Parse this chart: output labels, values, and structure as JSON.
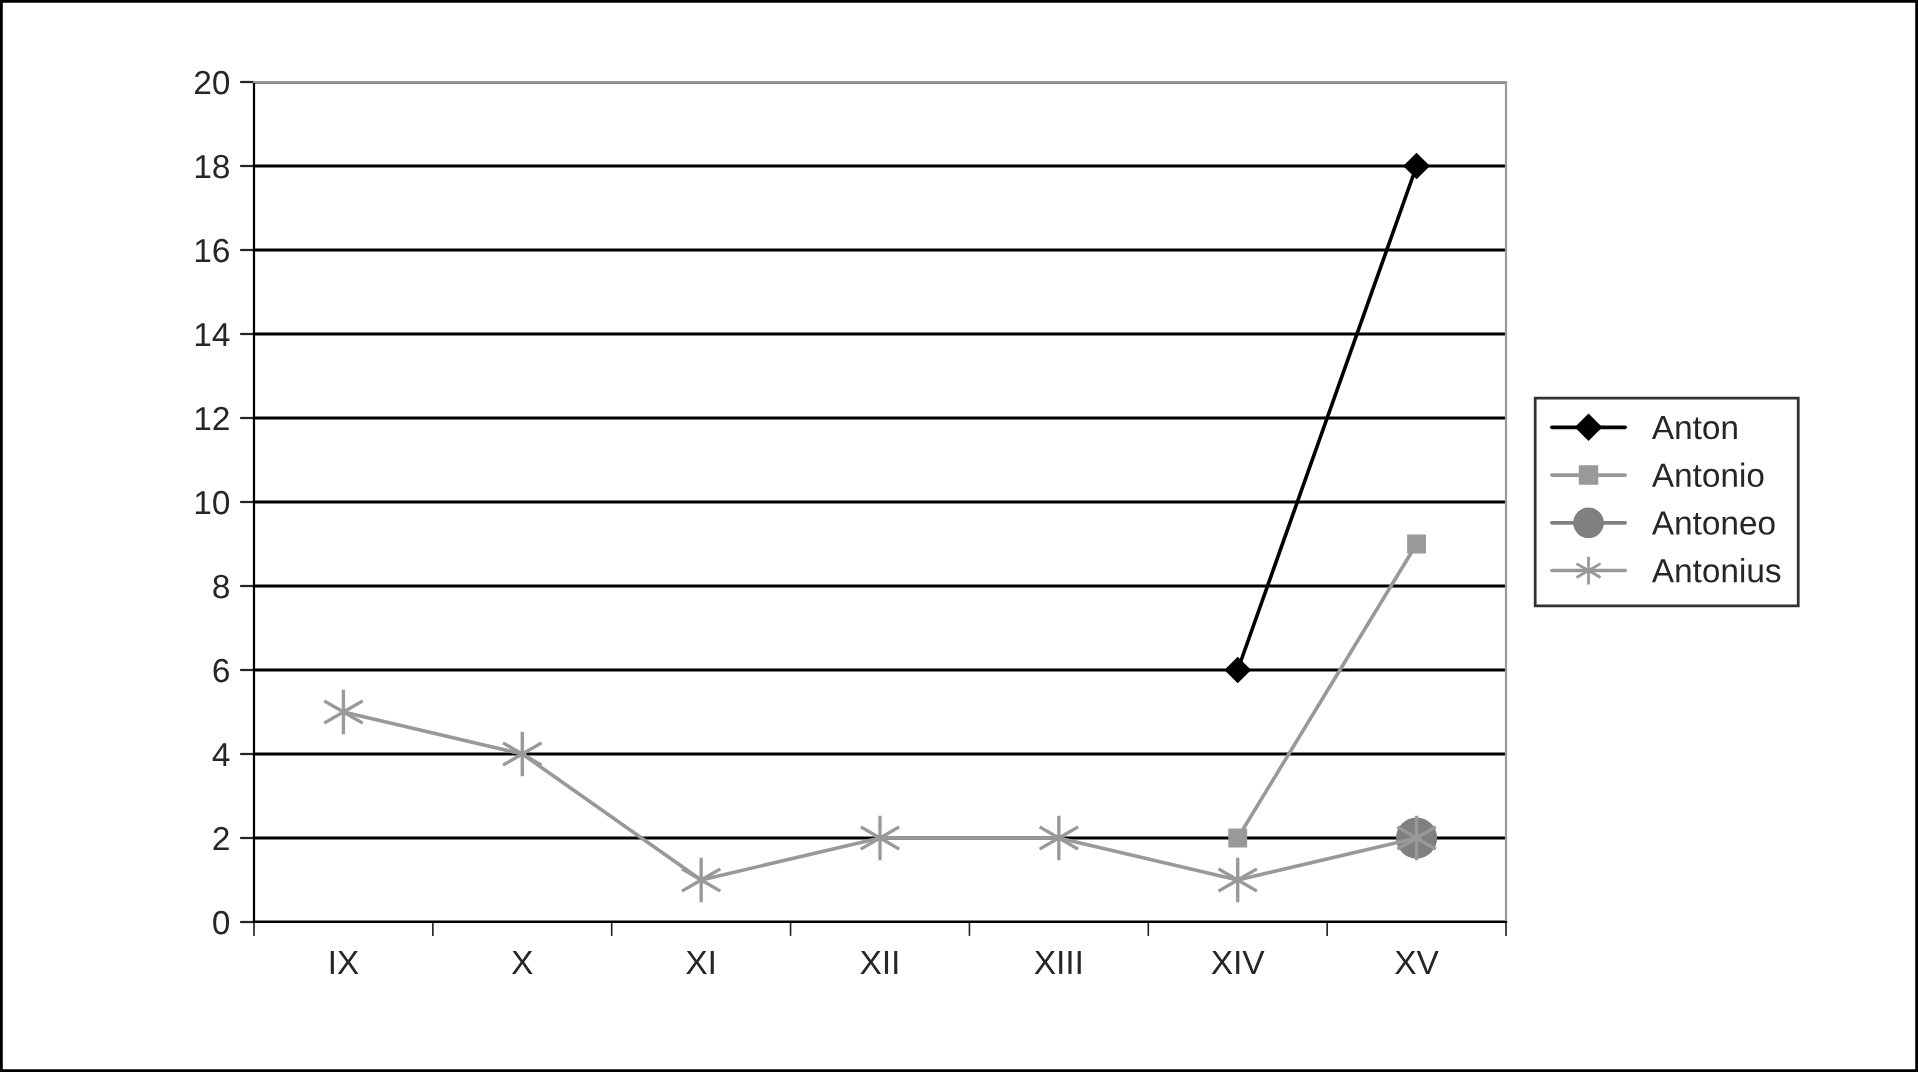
{
  "chart_data": {
    "type": "line",
    "categories": [
      "IX",
      "X",
      "XI",
      "XII",
      "XIII",
      "XIV",
      "XV"
    ],
    "series": [
      {
        "name": "Anton",
        "color": "#000000",
        "marker": "diamond",
        "values": [
          null,
          null,
          null,
          null,
          null,
          6,
          18
        ]
      },
      {
        "name": "Antonio",
        "color": "#999999",
        "marker": "square",
        "values": [
          null,
          null,
          null,
          null,
          null,
          2,
          9
        ]
      },
      {
        "name": "Antoneo",
        "color": "#808080",
        "marker": "circle",
        "values": [
          null,
          null,
          null,
          null,
          null,
          null,
          2
        ]
      },
      {
        "name": "Antonius",
        "color": "#999999",
        "marker": "cross",
        "values": [
          5,
          4,
          1,
          2,
          2,
          1,
          2
        ]
      }
    ],
    "ylim": [
      0,
      20
    ],
    "yticks": [
      0,
      2,
      4,
      6,
      8,
      10,
      12,
      14,
      16,
      18,
      20
    ],
    "grid": "y",
    "legend": "right"
  }
}
